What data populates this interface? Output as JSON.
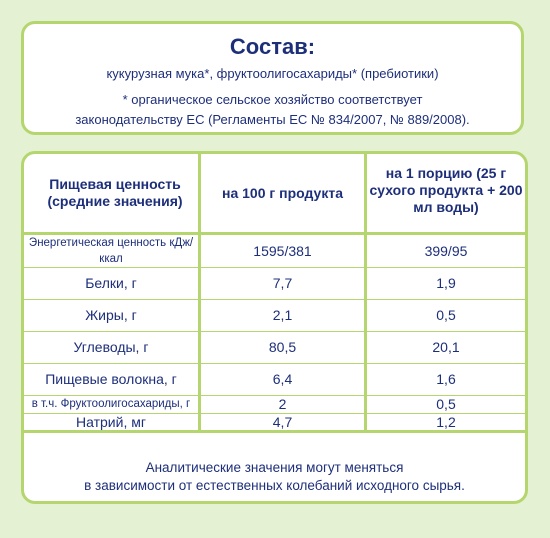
{
  "composition": {
    "title": "Состав:",
    "ingredients": "кукурузная мука*, фруктоолигосахариды* (пребиотики)",
    "note_line1": "* органическое сельское хозяйство соответствует",
    "note_line2": "законодательству ЕС (Регламенты ЕС № 834/2007, № 889/2008)."
  },
  "nutrition": {
    "header_col1": "Пищевая ценность (средние значения)",
    "header_col2": "на 100 г продукта",
    "header_col3": "на 1 порцию (25 г сухого продукта + 200 мл воды)",
    "rows": [
      {
        "name": "Энергетическая ценность кДж/ккал",
        "per100": "1595/381",
        "portion": "399/95"
      },
      {
        "name": "Белки, г",
        "per100": "7,7",
        "portion": "1,9"
      },
      {
        "name": "Жиры, г",
        "per100": "2,1",
        "portion": "0,5"
      },
      {
        "name": "Углеводы, г",
        "per100": "80,5",
        "portion": "20,1"
      },
      {
        "name": "Пищевые волокна, г",
        "per100": "6,4",
        "portion": "1,6"
      },
      {
        "name": "в т.ч. Фруктоолигосахариды, г",
        "per100": "2",
        "portion": "0,5"
      },
      {
        "name": "Натрий, мг",
        "per100": "4,7",
        "portion": "1,2"
      }
    ],
    "footer_line1": "Аналитические значения могут меняться",
    "footer_line2": "в зависимости от естественных колебаний исходного сырья."
  }
}
